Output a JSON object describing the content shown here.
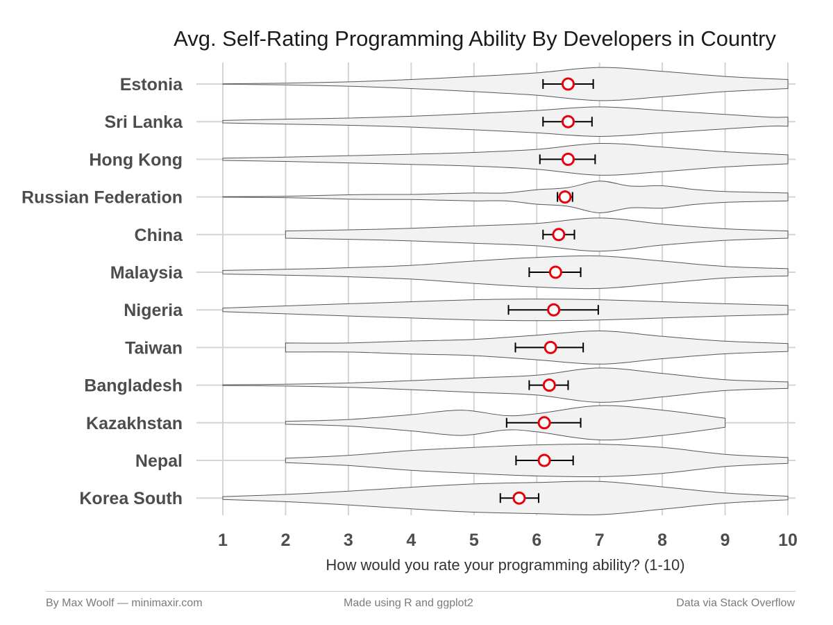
{
  "footer": {
    "left": "By Max Woolf — minimaxir.com",
    "center": "Made using R and ggplot2",
    "right": "Data via Stack Overflow"
  },
  "colors": {
    "violin_fill": "#f2f2f2",
    "violin_stroke": "#555555",
    "point_stroke": "#e8000b",
    "point_fill": "#ffffff",
    "error_bar": "#000000",
    "grid": "#d4d4d4"
  },
  "chart_data": {
    "type": "violin",
    "title": "Avg. Self-Rating Programming Ability By Developers in Country",
    "xlabel": "How would you rate your programming ability? (1-10)",
    "ylabel": "",
    "xlim": [
      1,
      10
    ],
    "x_ticks": [
      1,
      2,
      3,
      4,
      5,
      6,
      7,
      8,
      9,
      10
    ],
    "grid": true,
    "legend": "none",
    "categories": [
      "Estonia",
      "Sri Lanka",
      "Hong Kong",
      "Russian Federation",
      "China",
      "Malaysia",
      "Nigeria",
      "Taiwan",
      "Bangladesh",
      "Kazakhstan",
      "Nepal",
      "Korea South"
    ],
    "series": [
      {
        "category": "Estonia",
        "mean": 6.5,
        "ci_low": 6.1,
        "ci_high": 6.9,
        "min": 1,
        "max": 10,
        "density": [
          [
            1,
            0.01
          ],
          [
            2,
            0.05
          ],
          [
            3,
            0.12
          ],
          [
            4,
            0.25
          ],
          [
            5,
            0.42
          ],
          [
            6,
            0.62
          ],
          [
            7,
            0.92
          ],
          [
            8,
            0.7
          ],
          [
            9,
            0.42
          ],
          [
            10,
            0.25
          ]
        ]
      },
      {
        "category": "Sri Lanka",
        "mean": 6.5,
        "ci_low": 6.1,
        "ci_high": 6.88,
        "min": 1,
        "max": 10,
        "density": [
          [
            1,
            0.07
          ],
          [
            2,
            0.14
          ],
          [
            3,
            0.2
          ],
          [
            4,
            0.3
          ],
          [
            5,
            0.45
          ],
          [
            6,
            0.62
          ],
          [
            7,
            0.82
          ],
          [
            8,
            0.62
          ],
          [
            9,
            0.4
          ],
          [
            9.7,
            0.25
          ],
          [
            10,
            0.25
          ]
        ]
      },
      {
        "category": "Hong Kong",
        "mean": 6.5,
        "ci_low": 6.05,
        "ci_high": 6.93,
        "min": 1,
        "max": 10,
        "density": [
          [
            1,
            0.06
          ],
          [
            2,
            0.12
          ],
          [
            3,
            0.2
          ],
          [
            4,
            0.28
          ],
          [
            5,
            0.38
          ],
          [
            6,
            0.55
          ],
          [
            7,
            0.88
          ],
          [
            8,
            0.68
          ],
          [
            9,
            0.42
          ],
          [
            10,
            0.25
          ]
        ]
      },
      {
        "category": "Russian Federation",
        "mean": 6.45,
        "ci_low": 6.33,
        "ci_high": 6.57,
        "min": 1,
        "max": 10,
        "density": [
          [
            1,
            0.01
          ],
          [
            2,
            0.04
          ],
          [
            3,
            0.12
          ],
          [
            3.5,
            0.14
          ],
          [
            4,
            0.14
          ],
          [
            4.5,
            0.18
          ],
          [
            5,
            0.22
          ],
          [
            5.5,
            0.22
          ],
          [
            6,
            0.4
          ],
          [
            6.5,
            0.52
          ],
          [
            7,
            0.88
          ],
          [
            7.5,
            0.6
          ],
          [
            8,
            0.62
          ],
          [
            8.5,
            0.42
          ],
          [
            9,
            0.3
          ],
          [
            10,
            0.22
          ]
        ]
      },
      {
        "category": "China",
        "mean": 6.35,
        "ci_low": 6.1,
        "ci_high": 6.6,
        "min": 2,
        "max": 10,
        "density": [
          [
            2,
            0.2
          ],
          [
            3,
            0.26
          ],
          [
            4,
            0.35
          ],
          [
            5,
            0.48
          ],
          [
            6,
            0.62
          ],
          [
            7,
            0.92
          ],
          [
            8,
            0.58
          ],
          [
            9,
            0.32
          ],
          [
            10,
            0.2
          ]
        ]
      },
      {
        "category": "Malaysia",
        "mean": 6.3,
        "ci_low": 5.88,
        "ci_high": 6.7,
        "min": 1,
        "max": 10,
        "density": [
          [
            1,
            0.1
          ],
          [
            2,
            0.16
          ],
          [
            3,
            0.25
          ],
          [
            4,
            0.38
          ],
          [
            5,
            0.62
          ],
          [
            6,
            0.82
          ],
          [
            7,
            0.9
          ],
          [
            8,
            0.62
          ],
          [
            9,
            0.32
          ],
          [
            10,
            0.2
          ]
        ]
      },
      {
        "category": "Nigeria",
        "mean": 6.27,
        "ci_low": 5.55,
        "ci_high": 6.98,
        "min": 1,
        "max": 10,
        "density": [
          [
            1,
            0.1
          ],
          [
            2,
            0.22
          ],
          [
            3,
            0.34
          ],
          [
            4,
            0.45
          ],
          [
            5,
            0.56
          ],
          [
            6,
            0.6
          ],
          [
            7,
            0.56
          ],
          [
            8,
            0.45
          ],
          [
            9,
            0.34
          ],
          [
            10,
            0.25
          ]
        ]
      },
      {
        "category": "Taiwan",
        "mean": 6.22,
        "ci_low": 5.66,
        "ci_high": 6.74,
        "min": 2,
        "max": 10,
        "density": [
          [
            2,
            0.25
          ],
          [
            3,
            0.25
          ],
          [
            4,
            0.36
          ],
          [
            5,
            0.45
          ],
          [
            6,
            0.68
          ],
          [
            7,
            0.92
          ],
          [
            8,
            0.62
          ],
          [
            9,
            0.35
          ],
          [
            10,
            0.22
          ]
        ]
      },
      {
        "category": "Bangladesh",
        "mean": 6.2,
        "ci_low": 5.88,
        "ci_high": 6.5,
        "min": 1,
        "max": 10,
        "density": [
          [
            1,
            0.02
          ],
          [
            2,
            0.05
          ],
          [
            3,
            0.12
          ],
          [
            4,
            0.25
          ],
          [
            5,
            0.4
          ],
          [
            6,
            0.55
          ],
          [
            7,
            0.95
          ],
          [
            8,
            0.65
          ],
          [
            9,
            0.3
          ],
          [
            10,
            0.18
          ]
        ]
      },
      {
        "category": "Kazakhstan",
        "mean": 6.12,
        "ci_low": 5.52,
        "ci_high": 6.7,
        "min": 2,
        "max": 9,
        "density": [
          [
            2,
            0.08
          ],
          [
            3,
            0.18
          ],
          [
            4,
            0.45
          ],
          [
            4.8,
            0.7
          ],
          [
            5.5,
            0.4
          ],
          [
            6,
            0.5
          ],
          [
            7,
            0.95
          ],
          [
            8,
            0.7
          ],
          [
            9,
            0.25
          ]
        ]
      },
      {
        "category": "Nepal",
        "mean": 6.12,
        "ci_low": 5.67,
        "ci_high": 6.58,
        "min": 2,
        "max": 10,
        "density": [
          [
            2,
            0.12
          ],
          [
            3,
            0.28
          ],
          [
            4,
            0.55
          ],
          [
            5,
            0.72
          ],
          [
            6,
            0.86
          ],
          [
            7,
            0.9
          ],
          [
            8,
            0.72
          ],
          [
            9,
            0.34
          ],
          [
            10,
            0.16
          ]
        ]
      },
      {
        "category": "Korea South",
        "mean": 5.72,
        "ci_low": 5.42,
        "ci_high": 6.03,
        "min": 1,
        "max": 10,
        "density": [
          [
            1,
            0.08
          ],
          [
            2,
            0.2
          ],
          [
            3,
            0.38
          ],
          [
            4,
            0.6
          ],
          [
            5,
            0.78
          ],
          [
            6,
            0.86
          ],
          [
            7,
            0.92
          ],
          [
            8,
            0.62
          ],
          [
            9,
            0.28
          ],
          [
            10,
            0.1
          ]
        ]
      }
    ]
  }
}
